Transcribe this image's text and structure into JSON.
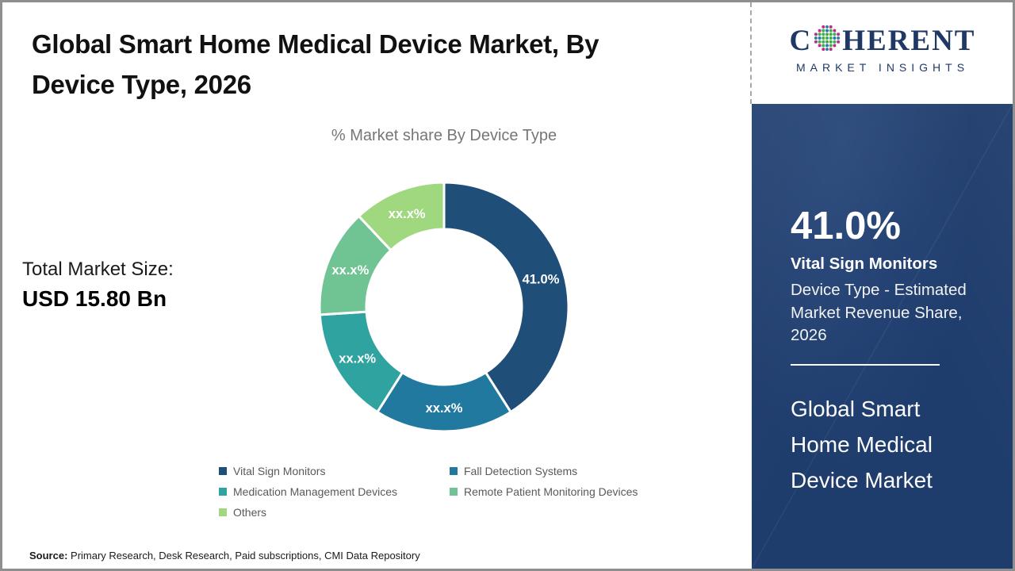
{
  "title": {
    "line1": "Global Smart Home Medical Device Market, By",
    "line2": "Device Type, 2026"
  },
  "logo": {
    "brand_first_letter": "C",
    "brand_rest": "HERENT",
    "tagline": "MARKET INSIGHTS",
    "brand_color": "#1f3864",
    "globe_dot_colors": [
      "#3fae49",
      "#2e75b6",
      "#b82e8a",
      "#31849b"
    ]
  },
  "chart": {
    "subtitle": "% Market share By Device Type"
  },
  "totals": {
    "label": "Total Market Size:",
    "value": "USD 15.80 Bn"
  },
  "chart_data": {
    "type": "pie",
    "subtype": "donut",
    "title": "% Market share By Device Type",
    "unit": "%",
    "start_angle_deg": 0,
    "direction": "clockwise",
    "legend_position": "bottom",
    "segments": [
      {
        "label": "Vital Sign Monitors",
        "display_value": "41.0%",
        "value": 41.0,
        "color": "#1F4E79"
      },
      {
        "label": "Fall Detection Systems",
        "display_value": "xx.x%",
        "value": 18.0,
        "color": "#2179A0"
      },
      {
        "label": "Medication Management Devices",
        "display_value": "xx.x%",
        "value": 15.0,
        "color": "#2FA3A0"
      },
      {
        "label": "Remote Patient Monitoring Devices",
        "display_value": "xx.x%",
        "value": 14.0,
        "color": "#70C494"
      },
      {
        "label": "Others",
        "display_value": "xx.x%",
        "value": 12.0,
        "color": "#9FD87F"
      }
    ]
  },
  "sidebar": {
    "stat_value": "41.0%",
    "stat_title": "Vital Sign Monitors",
    "stat_desc": "Device Type - Estimated Market Revenue Share, 2026",
    "market_name": "Global Smart Home Medical Device Market",
    "background_color": "#1e3c6c"
  },
  "source": {
    "label": "Source:",
    "text": " Primary Research, Desk Research, Paid subscriptions, CMI Data Repository"
  }
}
